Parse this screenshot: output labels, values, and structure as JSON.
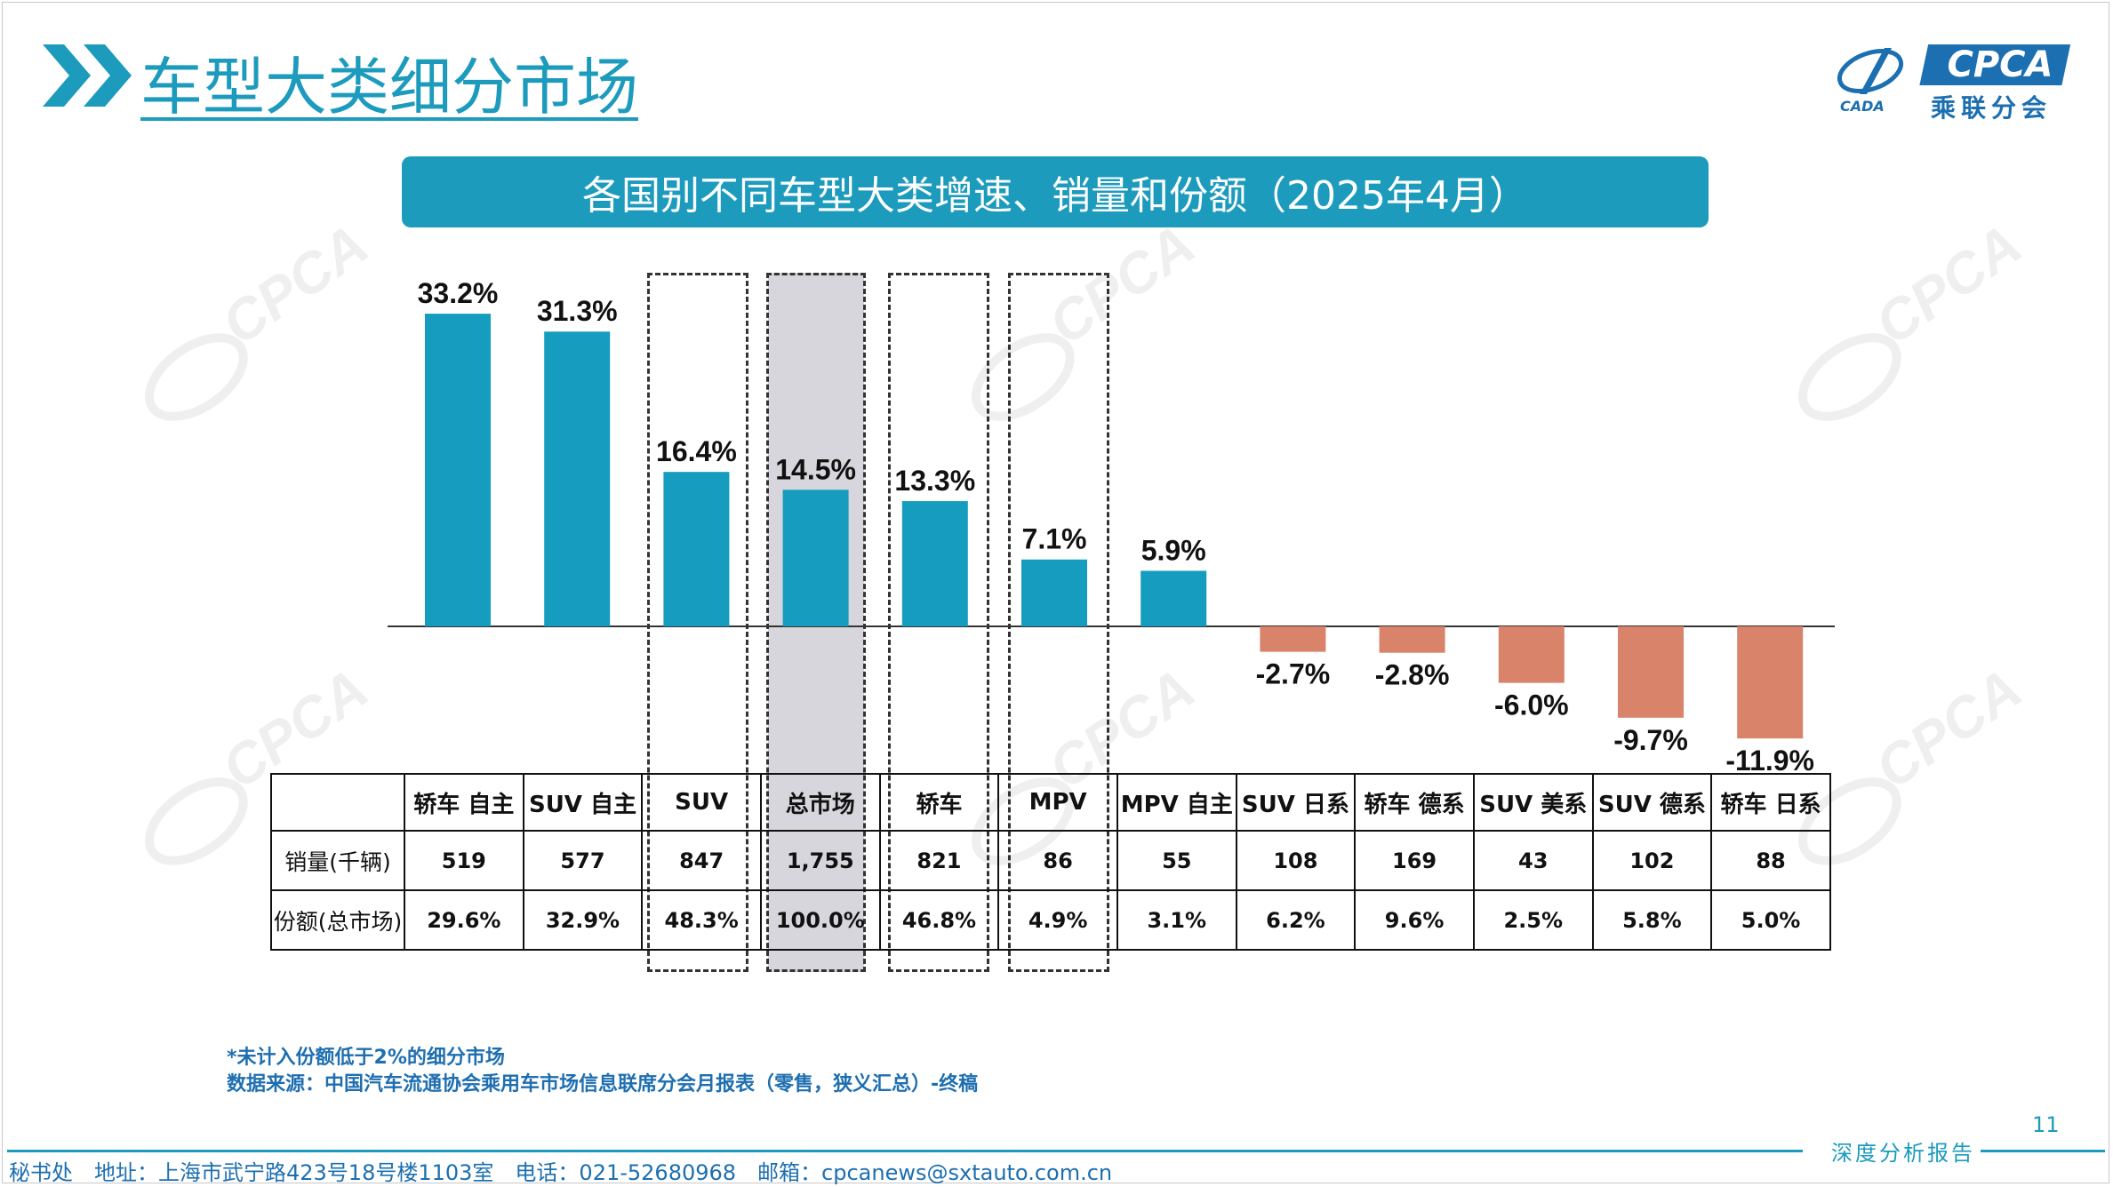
{
  "header": {
    "title": "车型大类细分市场",
    "logo_text": "CPCA",
    "logo_subtext": "乘联分会",
    "logo_small": "CADA"
  },
  "banner": {
    "title": "各国别不同车型大类增速、销量和份额（2025年4月）"
  },
  "colors": {
    "accent": "#1c9bbd",
    "positive_bar": "#159cbe",
    "negative_bar": "#d9836a",
    "footer_text": "#1c6fb0"
  },
  "chart_data": {
    "type": "bar",
    "categories": [
      "轿车 自主",
      "SUV 自主",
      "SUV",
      "总市场",
      "轿车",
      "MPV",
      "MPV 自主",
      "SUV 日系",
      "轿车 德系",
      "SUV 美系",
      "SUV 德系",
      "轿车 日系"
    ],
    "values": [
      33.2,
      31.3,
      16.4,
      14.5,
      13.3,
      7.1,
      5.9,
      -2.7,
      -2.8,
      -6.0,
      -9.7,
      -11.9
    ],
    "value_labels": [
      "33.2%",
      "31.3%",
      "16.4%",
      "14.5%",
      "13.3%",
      "7.1%",
      "5.9%",
      "-2.7%",
      "-2.8%",
      "-6.0%",
      "-9.7%",
      "-11.9%"
    ],
    "unit": "%",
    "highlighted_dashed": [
      "SUV",
      "轿车",
      "MPV"
    ],
    "highlighted_shaded": [
      "总市场"
    ],
    "xlabel": "",
    "ylabel": ""
  },
  "table": {
    "row_labels": [
      "销量(千辆)",
      "份额(总市场)"
    ],
    "sales": [
      "519",
      "577",
      "847",
      "1,755",
      "821",
      "86",
      "55",
      "108",
      "169",
      "43",
      "102",
      "88"
    ],
    "share": [
      "29.6%",
      "32.9%",
      "48.3%",
      "100.0%",
      "46.8%",
      "4.9%",
      "3.1%",
      "6.2%",
      "9.6%",
      "2.5%",
      "5.8%",
      "5.0%"
    ]
  },
  "notes": {
    "line1": "*未计入份额低于2%的细分市场",
    "line2": "数据来源：中国汽车流通协会乘用车市场信息联席分会月报表（零售，狭义汇总）-终稿"
  },
  "footer": {
    "page_number": "11",
    "tag": "深度分析报告",
    "contact": "秘书处　地址：上海市武宁路423号18号楼1103室　电话：021-52680968　邮箱：cpcanews@sxtauto.com.cn"
  }
}
